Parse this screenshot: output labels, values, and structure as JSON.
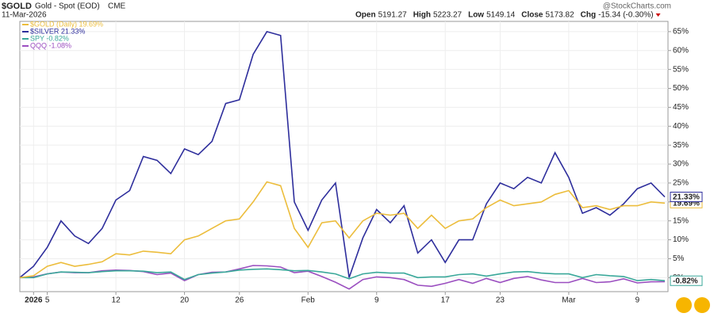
{
  "header": {
    "symbol": "$GOLD",
    "description": "Gold - Spot (EOD)",
    "exchange": "CME",
    "date": "11-Mar-2026",
    "watermark": "@StockCharts.com",
    "quote": [
      {
        "label": "Open",
        "value": "5191.27"
      },
      {
        "label": "High",
        "value": "5223.27"
      },
      {
        "label": "Low",
        "value": "5149.14"
      },
      {
        "label": "Close",
        "value": "5173.82"
      },
      {
        "label": "Chg",
        "value": "-15.34 (-0.30%)"
      }
    ]
  },
  "chart_data": {
    "type": "line",
    "categories": [
      null,
      "2026",
      "5",
      null,
      null,
      null,
      null,
      "12",
      null,
      null,
      null,
      null,
      "20",
      null,
      null,
      null,
      "26",
      null,
      null,
      null,
      null,
      "Feb",
      null,
      null,
      null,
      null,
      "9",
      null,
      null,
      null,
      null,
      "17",
      null,
      null,
      null,
      "23",
      null,
      null,
      null,
      null,
      "Mar",
      null,
      null,
      null,
      null,
      "9",
      null,
      null
    ],
    "series": [
      {
        "name": "$GOLD (Daily) 19.69%",
        "color": "#ecbd3c",
        "end_label": "19.69%",
        "values": [
          0,
          0.5,
          3,
          4,
          3,
          3.5,
          4.2,
          6.3,
          6,
          7,
          6.7,
          6.3,
          10,
          11,
          13,
          15,
          15.5,
          20,
          25.3,
          24.3,
          13,
          8,
          14.5,
          15,
          10.5,
          15,
          17,
          16.5,
          17,
          13,
          16.5,
          13,
          15,
          15.5,
          18.5,
          20.5,
          19,
          19.5,
          20,
          22,
          23,
          18.5,
          19,
          18,
          19,
          19,
          20,
          19.69
        ]
      },
      {
        "name": "$SILVER 21.33%",
        "color": "#2e2e9c",
        "end_label": "21.33%",
        "values": [
          0,
          3,
          8,
          15,
          11,
          9,
          13,
          20.5,
          23,
          32,
          31,
          27.5,
          34,
          32.5,
          36,
          46,
          47,
          59,
          65,
          64,
          20,
          12.5,
          20.5,
          25,
          0,
          10.5,
          18,
          14.5,
          19,
          6.5,
          10,
          4,
          10,
          10,
          19.5,
          25,
          23.5,
          26.5,
          25,
          33,
          26.5,
          17,
          18.5,
          16.5,
          19.5,
          23.5,
          25,
          21.33
        ]
      },
      {
        "name": "SPY -0.82%",
        "color": "#3aa89a",
        "end_label": "-0.82%",
        "values": [
          0,
          0,
          1,
          1.5,
          1.4,
          1.3,
          1.6,
          1.8,
          1.8,
          1.7,
          1.3,
          1.5,
          -0.5,
          0.8,
          1.2,
          1.5,
          2,
          2.2,
          2.3,
          2.1,
          1.8,
          1.9,
          1.5,
          1,
          -0.3,
          1,
          1.4,
          1.2,
          1.2,
          0,
          0.2,
          0.2,
          0.8,
          1,
          0.4,
          1,
          1.5,
          1.6,
          1.2,
          1,
          1,
          0,
          0.8,
          0.5,
          0.3,
          -0.8,
          -0.5,
          -0.82
        ]
      },
      {
        "name": "QQQ -1.08%",
        "color": "#9b4fc0",
        "values": [
          0,
          0.2,
          1,
          1.5,
          1.3,
          1.3,
          1.8,
          2,
          1.9,
          1.6,
          0.8,
          1.2,
          -0.8,
          0.8,
          1.4,
          1.5,
          2.3,
          3.2,
          3.1,
          2.8,
          1.3,
          1.7,
          0.3,
          -1.2,
          -3,
          -0.5,
          0.2,
          0,
          -0.5,
          -2,
          -2.3,
          -1.5,
          -0.5,
          -1.5,
          -0.2,
          -1.3,
          -0.2,
          0.3,
          -0.6,
          -1.3,
          -1.3,
          -0.2,
          -1.3,
          -1.1,
          -0.3,
          -1.4,
          -1.1,
          -1.08
        ]
      }
    ],
    "ylim": [
      -3.7,
      67.7
    ],
    "yticks": [
      {
        "value": 0,
        "label": "0%"
      },
      {
        "value": 5,
        "label": "5%"
      },
      {
        "value": 10,
        "label": "10%"
      },
      {
        "value": 15,
        "label": "15%"
      },
      {
        "value": 20,
        "label": "20%"
      },
      {
        "value": 25,
        "label": "25%"
      },
      {
        "value": 30,
        "label": "30%"
      },
      {
        "value": 35,
        "label": "35%"
      },
      {
        "value": 40,
        "label": "40%"
      },
      {
        "value": 45,
        "label": "45%"
      },
      {
        "value": 50,
        "label": "50%"
      },
      {
        "value": 55,
        "label": "55%"
      },
      {
        "value": 60,
        "label": "60%"
      },
      {
        "value": 65,
        "label": "65%"
      }
    ],
    "grid": true
  }
}
